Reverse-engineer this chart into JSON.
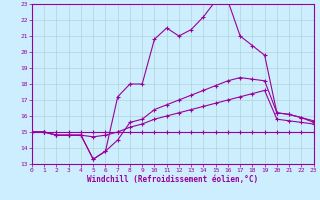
{
  "xlabel": "Windchill (Refroidissement éolien,°C)",
  "xlim": [
    0,
    23
  ],
  "ylim": [
    13,
    23
  ],
  "xticks": [
    0,
    1,
    2,
    3,
    4,
    5,
    6,
    7,
    8,
    9,
    10,
    11,
    12,
    13,
    14,
    15,
    16,
    17,
    18,
    19,
    20,
    21,
    22,
    23
  ],
  "yticks": [
    13,
    14,
    15,
    16,
    17,
    18,
    19,
    20,
    21,
    22,
    23
  ],
  "bg_color": "#cceeff",
  "line_color": "#990099",
  "grid_color": "#aacccc",
  "lines": [
    {
      "x": [
        0,
        1,
        2,
        3,
        4,
        5,
        6,
        7,
        8,
        9,
        10,
        11,
        12,
        13,
        14,
        15,
        16,
        17,
        18,
        19,
        20,
        21,
        22,
        23
      ],
      "y": [
        15,
        15,
        15,
        15,
        15,
        15,
        15,
        15,
        15,
        15,
        15,
        15,
        15,
        15,
        15,
        15,
        15,
        15,
        15,
        15,
        15,
        15,
        15,
        15
      ]
    },
    {
      "x": [
        0,
        1,
        2,
        3,
        4,
        5,
        6,
        7,
        8,
        9,
        10,
        11,
        12,
        13,
        14,
        15,
        16,
        17,
        18,
        19,
        20,
        21,
        22,
        23
      ],
      "y": [
        15,
        15,
        14.8,
        14.8,
        14.8,
        14.7,
        14.8,
        15.0,
        15.3,
        15.5,
        15.8,
        16.0,
        16.2,
        16.4,
        16.6,
        16.8,
        17.0,
        17.2,
        17.4,
        17.6,
        15.8,
        15.7,
        15.6,
        15.5
      ]
    },
    {
      "x": [
        0,
        1,
        2,
        3,
        4,
        5,
        6,
        7,
        8,
        9,
        10,
        11,
        12,
        13,
        14,
        15,
        16,
        17,
        18,
        19,
        20,
        21,
        22,
        23
      ],
      "y": [
        15,
        15,
        14.8,
        14.8,
        14.8,
        13.3,
        13.8,
        14.5,
        15.6,
        15.8,
        16.4,
        16.7,
        17.0,
        17.3,
        17.6,
        17.9,
        18.2,
        18.4,
        18.3,
        18.2,
        16.2,
        16.1,
        15.9,
        15.7
      ]
    },
    {
      "x": [
        0,
        1,
        2,
        3,
        4,
        5,
        6,
        7,
        8,
        9,
        10,
        11,
        12,
        13,
        14,
        15,
        16,
        17,
        18,
        19,
        20,
        21,
        22,
        23
      ],
      "y": [
        15,
        15,
        14.8,
        14.8,
        14.8,
        13.3,
        13.8,
        17.2,
        18.0,
        18.0,
        20.8,
        21.5,
        21.0,
        21.4,
        22.2,
        23.2,
        23.2,
        21.0,
        20.4,
        19.8,
        16.2,
        16.1,
        15.9,
        15.6
      ]
    }
  ]
}
